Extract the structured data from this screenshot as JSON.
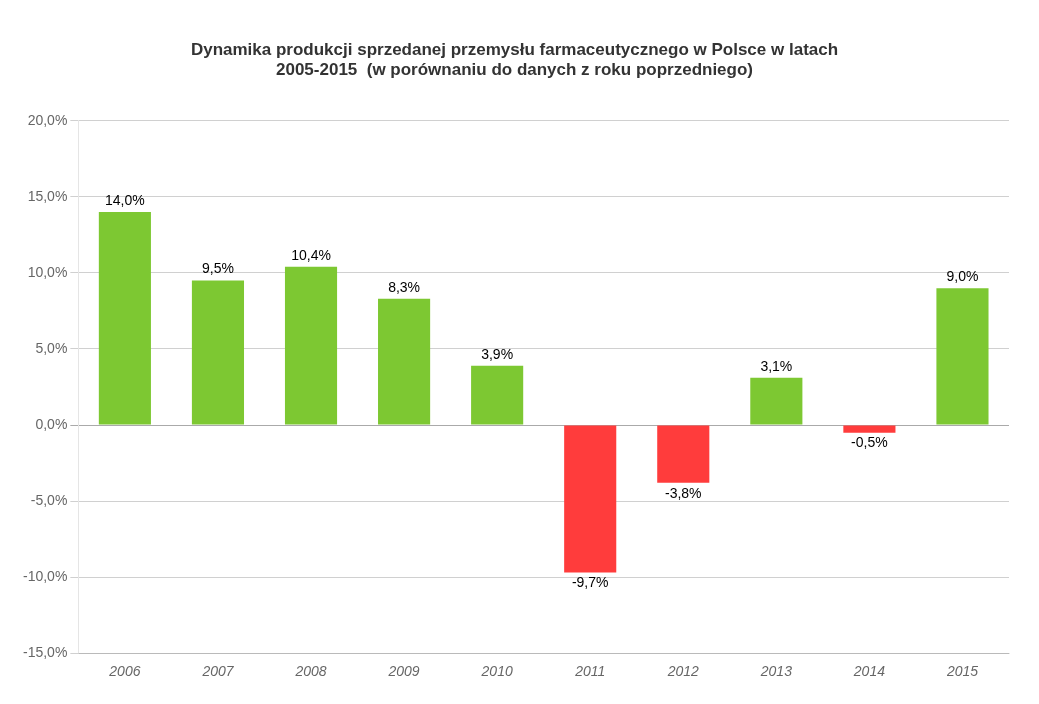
{
  "chart_data": {
    "type": "bar",
    "title": "Dynamika produkcji sprzedanej przemysłu farmaceutycznego w Polsce w latach\n2005-2015  (w porównaniu do danych z roku poprzedniego)",
    "categories": [
      "2006",
      "2007",
      "2008",
      "2009",
      "2010",
      "2011",
      "2012",
      "2013",
      "2014",
      "2015"
    ],
    "values": [
      14.0,
      9.5,
      10.4,
      8.3,
      3.9,
      -9.7,
      -3.8,
      3.1,
      -0.5,
      9.0
    ],
    "value_labels": [
      "14,0%",
      "9,5%",
      "10,4%",
      "8,3%",
      "3,9%",
      "-9,7%",
      "-3,8%",
      "3,1%",
      "-0,5%",
      "9,0%"
    ],
    "colors": [
      "#7dc832",
      "#7dc832",
      "#7dc832",
      "#7dc832",
      "#7dc832",
      "#ff3c3c",
      "#ff3c3c",
      "#7dc832",
      "#ff3c3c",
      "#7dc832"
    ],
    "ylim": [
      -15.0,
      20.0
    ],
    "yticks": [
      {
        "value": -15.0,
        "label": "-15,0%"
      },
      {
        "value": -10.0,
        "label": "-10,0%"
      },
      {
        "value": -5.0,
        "label": "-5,0%"
      },
      {
        "value": 0.0,
        "label": "0,0%"
      },
      {
        "value": 5.0,
        "label": "5,0%"
      },
      {
        "value": 10.0,
        "label": "10,0%"
      },
      {
        "value": 15.0,
        "label": "15,0%"
      },
      {
        "value": 20.0,
        "label": "20,0%"
      }
    ],
    "grid": true,
    "data_labels": true
  }
}
